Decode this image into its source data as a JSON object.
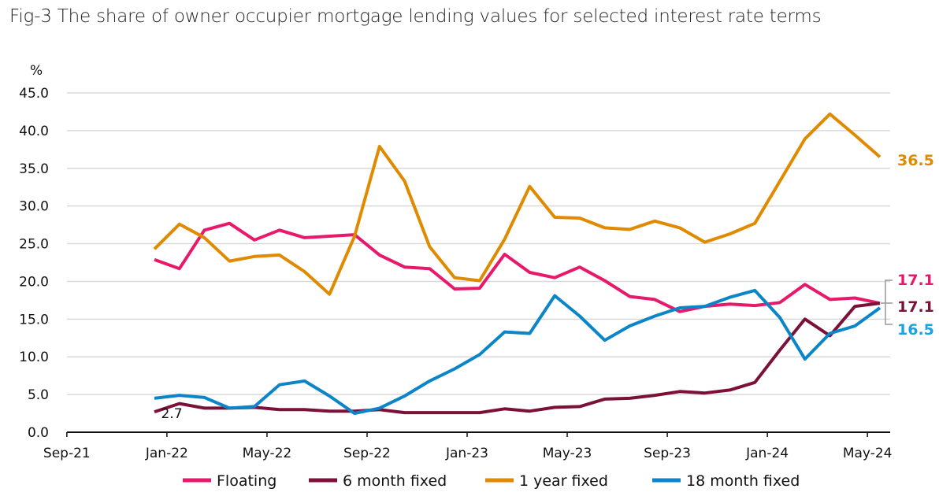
{
  "title": "Fig-3 The share of owner occupier mortgage lending values for selected interest rate terms",
  "chart_data": {
    "type": "line",
    "title": "Fig-3 The share of owner occupier mortgage lending values for selected interest rate terms",
    "ylabel": "%",
    "ylim": [
      0,
      45
    ],
    "yticks": [
      "0.0",
      "5.0",
      "10.0",
      "15.0",
      "20.0",
      "25.0",
      "30.0",
      "35.0",
      "40.0",
      "45.0"
    ],
    "xticks": [
      "Sep-21",
      "Jan-22",
      "May-22",
      "Sep-22",
      "Jan-23",
      "May-23",
      "Sep-23",
      "Jan-24",
      "May-24"
    ],
    "x": [
      "Dec-21",
      "Jan-22",
      "Feb-22",
      "Mar-22",
      "Apr-22",
      "May-22",
      "Jun-22",
      "Jul-22",
      "Aug-22",
      "Sep-22",
      "Oct-22",
      "Nov-22",
      "Dec-22",
      "Jan-23",
      "Feb-23",
      "Mar-23",
      "Apr-23",
      "May-23",
      "Jun-23",
      "Jul-23",
      "Aug-23",
      "Sep-23",
      "Oct-23",
      "Nov-23",
      "Dec-23",
      "Jan-24",
      "Feb-24",
      "Mar-24",
      "Apr-24",
      "May-24"
    ],
    "grid": true,
    "legend": "bottom",
    "series": [
      {
        "name": "Floating",
        "color": "#E8196B",
        "values": [
          22.9,
          21.7,
          26.8,
          27.7,
          25.5,
          26.8,
          25.8,
          26.0,
          26.2,
          23.5,
          21.9,
          21.7,
          19.0,
          19.1,
          23.6,
          21.2,
          20.5,
          21.9,
          20.1,
          18.0,
          17.6,
          16.0,
          16.7,
          17.0,
          16.8,
          17.2,
          19.6,
          17.6,
          17.8,
          17.1
        ],
        "end_label": "17.1",
        "label_color": "#E8196B"
      },
      {
        "name": "6 month fixed",
        "color": "#7B1038",
        "values": [
          2.7,
          3.8,
          3.2,
          3.2,
          3.3,
          3.0,
          3.0,
          2.8,
          2.8,
          3.0,
          2.6,
          2.6,
          2.6,
          2.6,
          3.1,
          2.8,
          3.3,
          3.4,
          4.4,
          4.5,
          4.9,
          5.4,
          5.2,
          5.6,
          6.6,
          10.9,
          15.0,
          12.8,
          16.7,
          17.1
        ],
        "end_label": "17.1",
        "start_label": "2.7",
        "label_color": "#7B1038"
      },
      {
        "name": "1 year fixed",
        "color": "#E08A00",
        "values": [
          24.3,
          27.6,
          25.8,
          22.7,
          23.3,
          23.5,
          21.3,
          18.3,
          26.0,
          37.9,
          33.3,
          24.6,
          20.5,
          20.1,
          25.6,
          32.6,
          28.5,
          28.4,
          27.1,
          26.9,
          28.0,
          27.1,
          25.2,
          26.3,
          27.7,
          33.3,
          38.9,
          42.2,
          39.4,
          36.5
        ],
        "end_label": "36.5",
        "label_color": "#E08A00"
      },
      {
        "name": "18 month fixed",
        "color": "#0A85C8",
        "values": [
          4.5,
          4.9,
          4.6,
          3.2,
          3.4,
          6.3,
          6.8,
          4.8,
          2.5,
          3.2,
          4.8,
          6.8,
          8.4,
          10.3,
          13.3,
          13.1,
          18.1,
          15.4,
          12.2,
          14.1,
          15.4,
          16.5,
          16.7,
          17.9,
          18.8,
          15.2,
          9.7,
          13.1,
          14.1,
          16.5
        ],
        "end_label": "16.5",
        "label_color": "#1AA3DF"
      }
    ]
  }
}
